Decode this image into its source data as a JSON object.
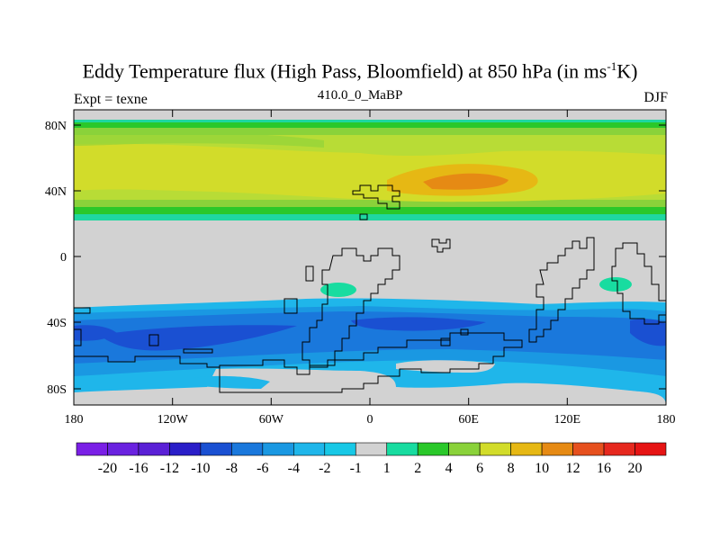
{
  "title_main": "Eddy Temperature flux (High Pass, Bloomfield) at 850 hPa (in ms",
  "title_sup": "-1",
  "title_end": "K)",
  "left_label": "Expt = texne",
  "center_label": "410.0_0_MaBP",
  "right_label": "DJF",
  "lat_ticks": [
    "80N",
    "40N",
    "0",
    "40S",
    "80S"
  ],
  "lon_ticks": [
    "180",
    "120W",
    "60W",
    "0",
    "60E",
    "120E",
    "180"
  ],
  "colorbar": {
    "labels": [
      "-20",
      "-16",
      "-12",
      "-10",
      "-8",
      "-6",
      "-4",
      "-2",
      "-1",
      "1",
      "2",
      "4",
      "6",
      "8",
      "10",
      "12",
      "16",
      "20"
    ],
    "colors": [
      "#7a1fe6",
      "#6a22e0",
      "#5a20d6",
      "#2a1ec8",
      "#1a50d2",
      "#1a78dc",
      "#1a98e2",
      "#1fb6ea",
      "#18c8e6",
      "#d2d2d2",
      "#18dca0",
      "#2ac82a",
      "#8ad23a",
      "#d2dc2a",
      "#e6b814",
      "#e68a14",
      "#e6501e",
      "#e6281e",
      "#e61414"
    ]
  }
}
